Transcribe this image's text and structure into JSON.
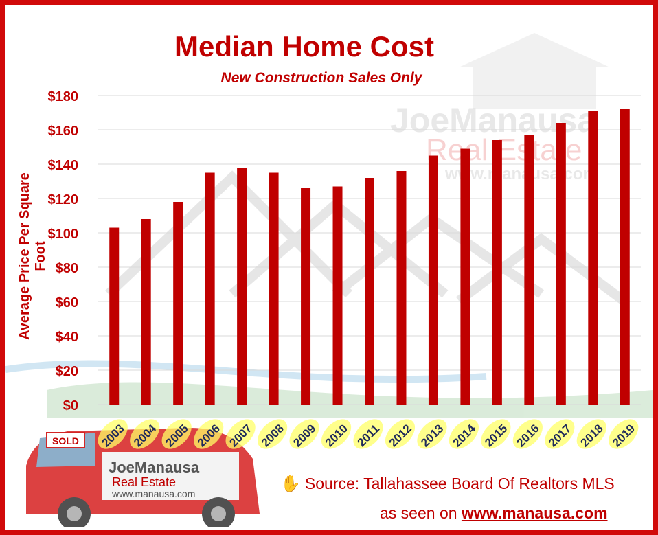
{
  "title": "Median Home Cost",
  "subtitle": "New Construction Sales Only",
  "watermark": {
    "brand_top": "JoeManausa",
    "brand_bottom": "Real Estate",
    "url": "www.manausa.com"
  },
  "car": {
    "sold": "SOLD",
    "brand_top": "JoeManausa",
    "brand_bottom": "Real Estate",
    "url": "www.manausa.com"
  },
  "source_text": "Source: Tallahassee Board Of Realtors MLS",
  "seen_prefix": "as seen on ",
  "seen_url": "www.manausa.com",
  "colors": {
    "bar": "#c00000",
    "frame": "#d10a0a",
    "text": "#c00000",
    "year_highlight": "#ffff66"
  },
  "icons": {
    "source": "hand-icon"
  },
  "chart_data": {
    "type": "bar",
    "title": "Median Home Cost",
    "subtitle": "New Construction Sales Only",
    "xlabel": "",
    "ylabel": "Average Price Per Square Foot",
    "categories": [
      "2003",
      "2004",
      "2005",
      "2006",
      "2007",
      "2008",
      "2009",
      "2010",
      "2011",
      "2012",
      "2013",
      "2014",
      "2015",
      "2016",
      "2017",
      "2018",
      "2019"
    ],
    "values": [
      103,
      108,
      118,
      135,
      138,
      135,
      126,
      127,
      132,
      136,
      145,
      149,
      154,
      157,
      164,
      171,
      172
    ],
    "ylim": [
      0,
      180
    ],
    "yticks": [
      0,
      20,
      40,
      60,
      80,
      100,
      120,
      140,
      160,
      180
    ],
    "ytick_labels": [
      "$0",
      "$20",
      "$40",
      "$60",
      "$80",
      "$100",
      "$120",
      "$140",
      "$160",
      "$180"
    ],
    "grid": true,
    "legend": "none"
  }
}
